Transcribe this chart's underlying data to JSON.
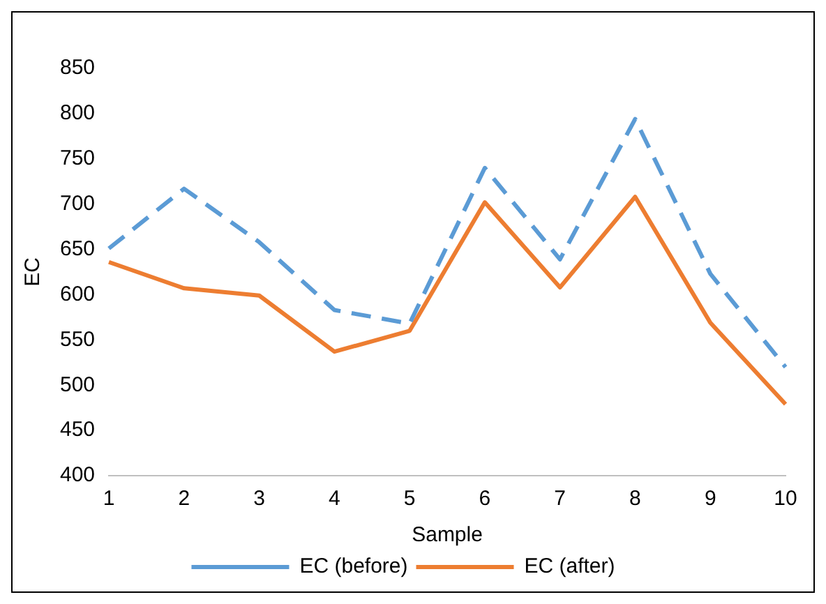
{
  "chart_data": {
    "type": "line",
    "xlabel": "Sample",
    "ylabel": "EC",
    "categories": [
      "1",
      "2",
      "3",
      "4",
      "5",
      "6",
      "7",
      "8",
      "9",
      "10"
    ],
    "series": [
      {
        "name": "EC (before)",
        "color": "#5b9bd5",
        "line_style": "dashed",
        "values": [
          651,
          717,
          658,
          583,
          568,
          740,
          639,
          794,
          623,
          520
        ]
      },
      {
        "name": "EC (after)",
        "color": "#ed7d31",
        "line_style": "solid",
        "values": [
          636,
          607,
          599,
          537,
          560,
          702,
          608,
          708,
          569,
          479
        ]
      }
    ],
    "ylim": [
      400,
      850
    ],
    "yticks": [
      400,
      450,
      500,
      550,
      600,
      650,
      700,
      750,
      800,
      850
    ],
    "grid": false,
    "legend": "bottom",
    "marker": "none"
  }
}
